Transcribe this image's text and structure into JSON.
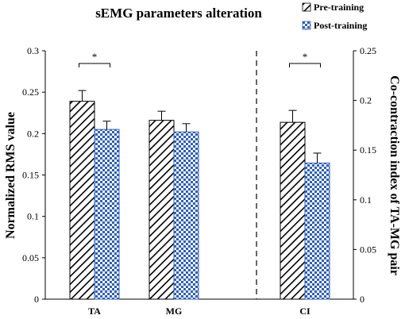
{
  "chart_data": {
    "type": "bar",
    "title": "sEMG parameters alteration",
    "categories": [
      "TA",
      "MG",
      "CI"
    ],
    "series": [
      {
        "name": "Pre-training",
        "pattern": "diagonal-hatch",
        "values": [
          0.239,
          0.216,
          0.178
        ],
        "errors": [
          0.013,
          0.011,
          0.012
        ]
      },
      {
        "name": "Post-training",
        "pattern": "blue-checker",
        "values": [
          0.205,
          0.202,
          0.137
        ],
        "errors": [
          0.01,
          0.01,
          0.01
        ]
      }
    ],
    "left_axis": {
      "label": "Normalized RMS value",
      "ylim": [
        0,
        0.3
      ],
      "ticks": [
        "0",
        "0.05",
        "0.1",
        "0.15",
        "0.2",
        "0.25",
        "0.3"
      ],
      "applies_to": [
        "TA",
        "MG"
      ]
    },
    "right_axis": {
      "label": "Co-contraction index of TA-MG pair",
      "ylim": [
        0,
        0.25
      ],
      "ticks": [
        "0",
        "0.05",
        "0.1",
        "0.15",
        "0.2",
        "0.25"
      ],
      "applies_to": [
        "CI"
      ]
    },
    "significance": [
      {
        "category": "TA",
        "label": "*"
      },
      {
        "category": "CI",
        "label": "*"
      }
    ],
    "separator": "dashed vertical line between MG and CI",
    "legend_position": "top-right",
    "grid": false,
    "colors": {
      "hatch_stroke": "#000000",
      "checker_blue": "#2f5fb8",
      "checker_light": "#ffffff",
      "error_bar": "#000000",
      "axis": "#000000"
    }
  }
}
